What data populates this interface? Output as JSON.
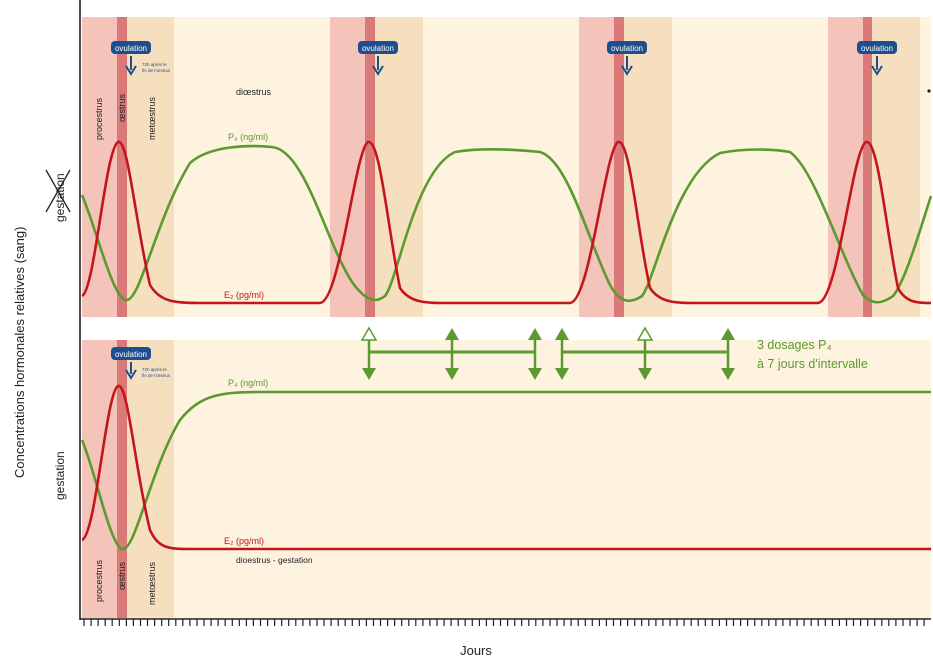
{
  "axes": {
    "y_label": "Concentrations hormonales relatives (sang)",
    "x_label": "Jours"
  },
  "top_panel": {
    "row_label": "gestation",
    "row_label_crossed": true,
    "ovulation_label": "ovulation",
    "ovulation_note_line1": "72h après le",
    "ovulation_note_line2": "fin de l'œstrus",
    "phase_labels": {
      "proestrus": "procestrus",
      "oestrus": "œstrus",
      "metoestrus": "metœstrus",
      "dioestrus": "diœstrus"
    },
    "p4_label": "P₄ (ng/ml)",
    "e2_label": "E₂ (pg/ml)"
  },
  "bottom_panel": {
    "row_label": "gestation",
    "ovulation_label": "ovulation",
    "ovulation_note_line1": "72h après le",
    "ovulation_note_line2": "fin de l'œstrus",
    "phase_labels": {
      "proestrus": "procestrus",
      "oestrus": "œstrus",
      "metoestrus": "metœstrus"
    },
    "p4_label": "P₄ (ng/ml)",
    "e2_label": "E₂ (pg/ml)",
    "phase_caption": "dioestrus - gestation"
  },
  "dosage_annotation": {
    "line1": "3 dosages P₄",
    "line2": "à 7 jours d'intervalle"
  },
  "colors": {
    "p4": "#5a9a2f",
    "e2": "#c3161c",
    "proestrus": "#f4c3b9",
    "oestrus": "#d97a78",
    "metoestrus": "#f6dfbe",
    "dioestrus": "#fdf3df",
    "ovulation_badge": "#1e4f8c",
    "annotation": "#5a9a2f"
  }
}
